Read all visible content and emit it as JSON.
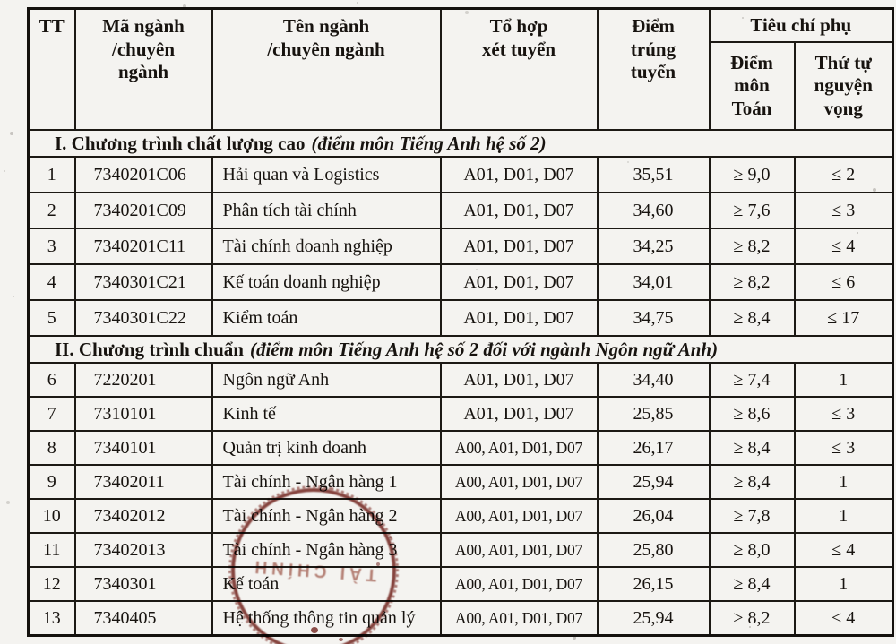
{
  "table": {
    "headers": {
      "tt": "TT",
      "ma_nganh": "Mã ngành\n/chuyên\nngành",
      "ten_nganh": "Tên ngành\n/chuyên ngành",
      "to_hop": "Tổ hợp\nxét tuyển",
      "diem_trung_tuyen": "Điểm\ntrúng\ntuyển",
      "tieu_chi_phu": "Tiêu chí phụ",
      "diem_mon_toan": "Điểm\nmôn\nToán",
      "thu_tu_nguyen_vong": "Thứ tự\nnguyện\nvọng"
    },
    "sections": [
      {
        "title": "I. Chương trình chất lượng cao",
        "note": "(điểm môn Tiếng Anh hệ số 2)",
        "rows": [
          {
            "tt": "1",
            "code": "7340201C06",
            "name": "Hải quan và Logistics",
            "combos": "A01, D01, D07",
            "score": "35,51",
            "math": "≥ 9,0",
            "priority": "≤ 2"
          },
          {
            "tt": "2",
            "code": "7340201C09",
            "name": "Phân tích tài chính",
            "combos": "A01, D01, D07",
            "score": "34,60",
            "math": "≥ 7,6",
            "priority": "≤ 3"
          },
          {
            "tt": "3",
            "code": "7340201C11",
            "name": "Tài chính doanh nghiệp",
            "combos": "A01, D01, D07",
            "score": "34,25",
            "math": "≥ 8,2",
            "priority": "≤ 4"
          },
          {
            "tt": "4",
            "code": "7340301C21",
            "name": "Kế toán doanh nghiệp",
            "combos": "A01, D01, D07",
            "score": "34,01",
            "math": "≥ 8,2",
            "priority": "≤ 6"
          },
          {
            "tt": "5",
            "code": "7340301C22",
            "name": "Kiểm toán",
            "combos": "A01, D01, D07",
            "score": "34,75",
            "math": "≥ 8,4",
            "priority": "≤ 17"
          }
        ]
      },
      {
        "title": "II. Chương trình chuẩn",
        "note": "(điểm môn Tiếng Anh hệ số 2 đối với ngành Ngôn ngữ Anh)",
        "rows": [
          {
            "tt": "6",
            "code": "7220201",
            "name": "Ngôn ngữ Anh",
            "combos": "A01, D01, D07",
            "score": "34,40",
            "math": "≥ 7,4",
            "priority": "1"
          },
          {
            "tt": "7",
            "code": "7310101",
            "name": "Kinh tế",
            "combos": "A01, D01, D07",
            "score": "25,85",
            "math": "≥ 8,6",
            "priority": "≤ 3"
          },
          {
            "tt": "8",
            "code": "7340101",
            "name": "Quản trị kinh doanh",
            "combos": "A00, A01, D01, D07",
            "score": "26,17",
            "math": "≥ 8,4",
            "priority": "≤ 3"
          },
          {
            "tt": "9",
            "code": "73402011",
            "name": "Tài chính - Ngân hàng 1",
            "combos": "A00, A01, D01, D07",
            "score": "25,94",
            "math": "≥ 8,4",
            "priority": "1"
          },
          {
            "tt": "10",
            "code": "73402012",
            "name": "Tài chính - Ngân hàng 2",
            "combos": "A00, A01, D01, D07",
            "score": "26,04",
            "math": "≥ 7,8",
            "priority": "1"
          },
          {
            "tt": "11",
            "code": "73402013",
            "name": "Tài chính - Ngân hàng 3",
            "combos": "A00, A01, D01, D07",
            "score": "25,80",
            "math": "≥ 8,0",
            "priority": "≤ 4"
          },
          {
            "tt": "12",
            "code": "7340301",
            "name": "Kế toán",
            "combos": "A00, A01, D01, D07",
            "score": "26,15",
            "math": "≥ 8,4",
            "priority": "1"
          },
          {
            "tt": "13",
            "code": "7340405",
            "name": "Hệ thống thông tin quản lý",
            "combos": "A00, A01, D01, D07",
            "score": "25,94",
            "math": "≥ 8,2",
            "priority": "≤ 4"
          }
        ]
      }
    ]
  },
  "stamp": {
    "text": "TÀI CHÍNH",
    "color": "#6e1812"
  }
}
